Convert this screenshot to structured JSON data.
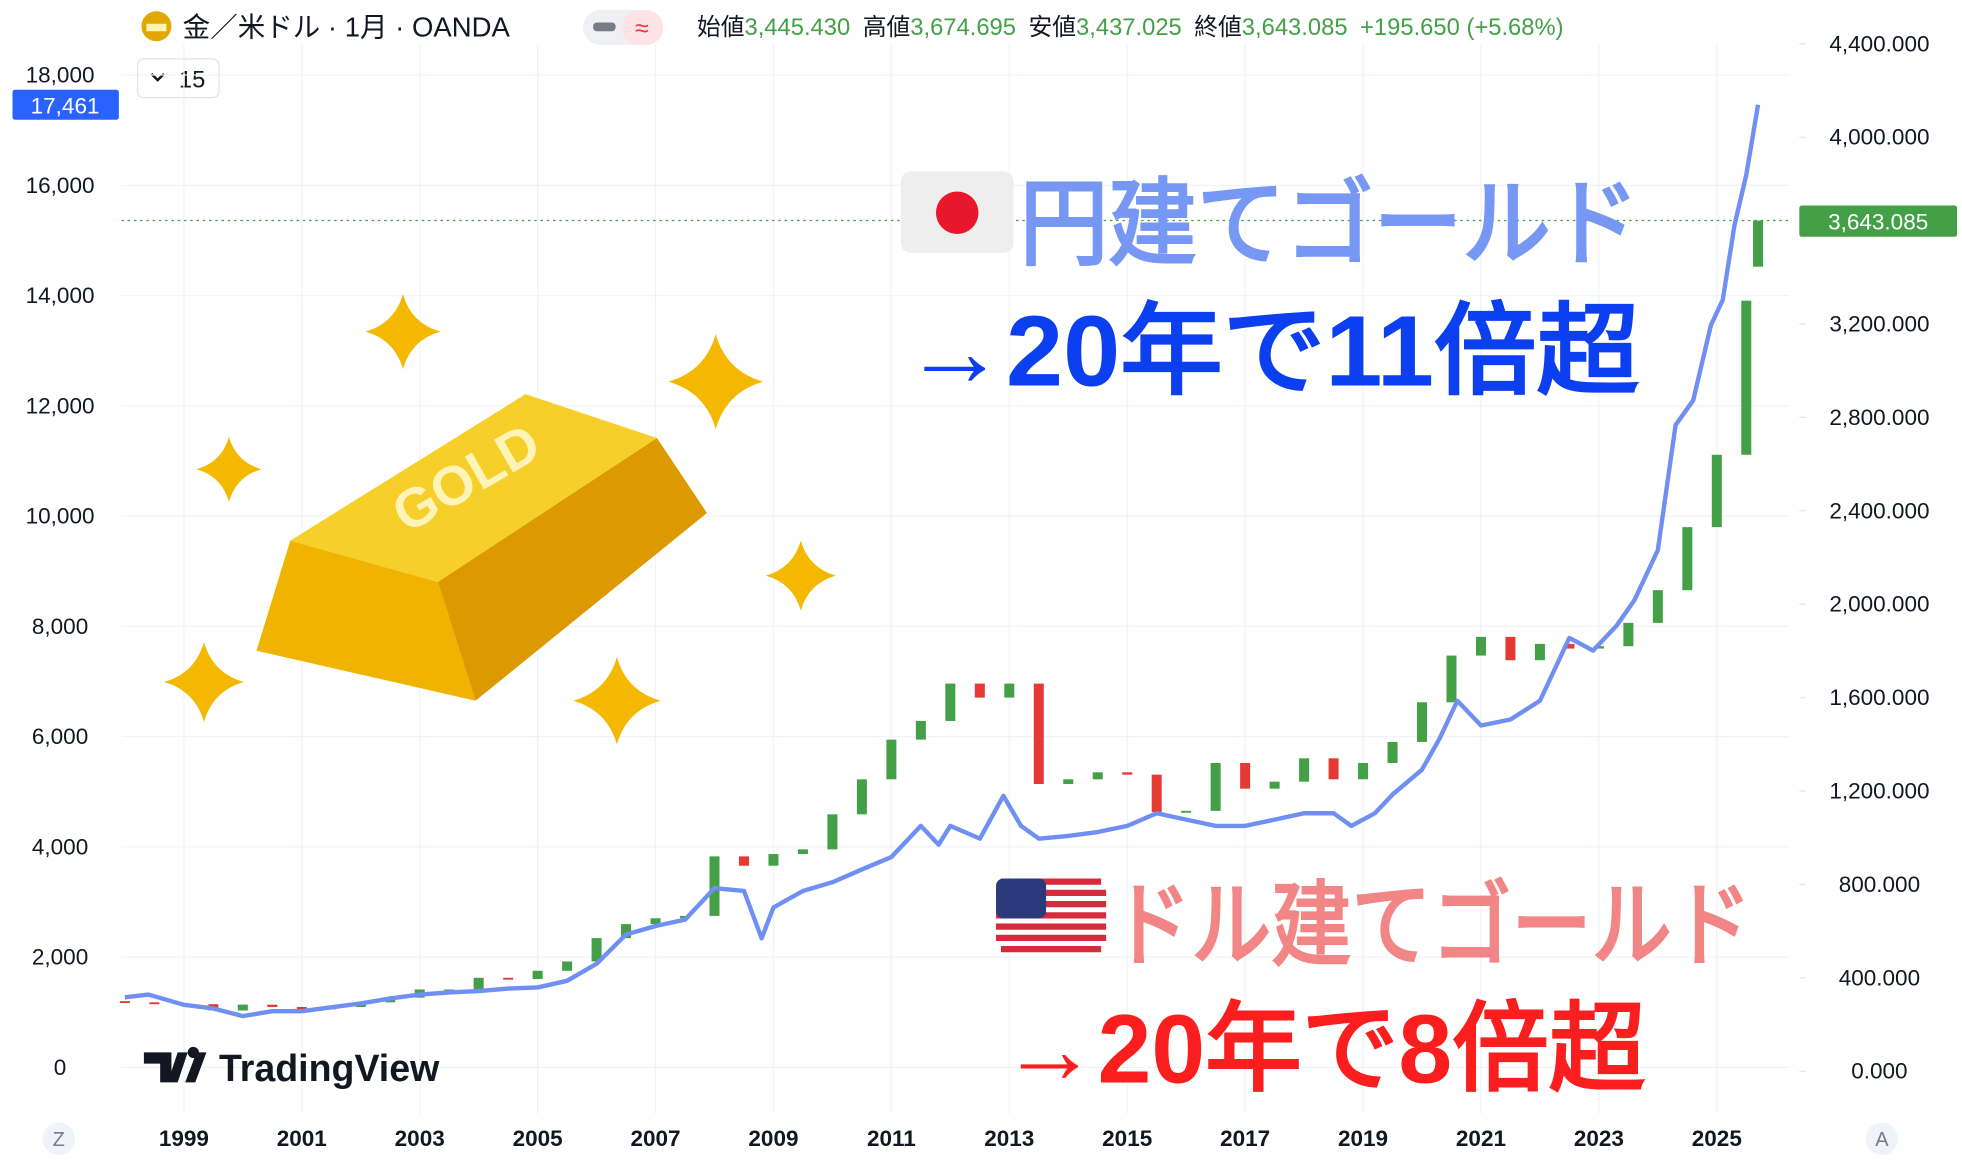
{
  "header": {
    "symbol": "金／米ドル · 1月 · OANDA",
    "ohlc": [
      {
        "label": "始値",
        "value": "3,445.430"
      },
      {
        "label": "高値",
        "value": "3,674.695"
      },
      {
        "label": "安値",
        "value": "3,437.025"
      },
      {
        "label": "終値",
        "value": "3,643.085"
      }
    ],
    "change": "+195.650 (+5.68%)",
    "interval_button": "15",
    "toggle_icon": "≈"
  },
  "illustration_text": "GOLD",
  "logo_text": "TradingView",
  "corner_buttons": [
    "Z",
    "A"
  ],
  "chart_data": {
    "type": "candlestick",
    "annotations": [
      "円建てゴールド",
      "→20年で11倍超",
      "ドル建てゴールド",
      "→20年で8倍超"
    ],
    "xlim": [
      1997.94,
      2026.23
    ],
    "xticks": [
      1999,
      2001,
      2003,
      2005,
      2007,
      2009,
      2011,
      2013,
      2015,
      2017,
      2019,
      2021,
      2023,
      2025
    ],
    "ylim": [
      -840,
      18567
    ],
    "yticks": [
      0,
      {
        "value": 2000,
        "label": "2,000"
      },
      {
        "value": 4000,
        "label": "4,000"
      },
      {
        "value": 6000,
        "label": "6,000"
      },
      {
        "value": 8000,
        "label": "8,000"
      },
      {
        "value": 10000,
        "label": "10,000"
      },
      {
        "value": 12000,
        "label": "12,000"
      },
      {
        "value": 14000,
        "label": "14,000"
      },
      {
        "value": 16000,
        "label": "16,000"
      },
      {
        "value": 18000,
        "label": "18,000"
      }
    ],
    "y2lim": [
      -182,
      4400
    ],
    "y2ticks": [
      {
        "value": 0,
        "label": "0.000"
      },
      {
        "value": 400,
        "label": "400.000"
      },
      {
        "value": 800,
        "label": "800.000"
      },
      {
        "value": 1200,
        "label": "1,200.000"
      },
      {
        "value": 1600,
        "label": "1,600.000"
      },
      {
        "value": 2000,
        "label": "2,000.000"
      },
      {
        "value": 2400,
        "label": "2,400.000"
      },
      {
        "value": 2800,
        "label": "2,800.000"
      },
      {
        "value": 3200,
        "label": "3,200.000"
      },
      {
        "value": 4000,
        "label": "4,000.000"
      },
      {
        "value": 4400,
        "label": "4,400.000"
      }
    ],
    "grid": true,
    "series": [
      {
        "type": "line",
        "color": "#6f8ff3",
        "last_value_label": "17,461",
        "x": [
          1998,
          1998.4,
          1999,
          1999.5,
          2000,
          2000.5,
          2001,
          2001.5,
          2002,
          2002.5,
          2003,
          2003.5,
          2004,
          2004.5,
          2005,
          2005.5,
          2006,
          2006.5,
          2007,
          2007.5,
          2008,
          2008.5,
          2008.8,
          2009,
          2009.5,
          2010,
          2010.5,
          2011,
          2011.5,
          2011.8,
          2012,
          2012.5,
          2012.9,
          2013.2,
          2013.5,
          2014,
          2014.5,
          2015,
          2015.5,
          2016,
          2016.5,
          2017,
          2017.5,
          2018,
          2018.5,
          2018.8,
          2019.2,
          2019.5,
          2020,
          2020.3,
          2020.6,
          2021,
          2021.5,
          2022,
          2022.5,
          2022.9,
          2023.3,
          2023.6,
          2024,
          2024.3,
          2024.6,
          2024.9,
          2025.1,
          2025.3,
          2025.5,
          2025.7
        ],
        "values": [
          1270,
          1320,
          1135,
          1070,
          930,
          1020,
          1020,
          1090,
          1160,
          1250,
          1320,
          1360,
          1385,
          1430,
          1450,
          1570,
          1880,
          2410,
          2565,
          2680,
          3250,
          3200,
          2340,
          2900,
          3200,
          3360,
          3590,
          3815,
          4380,
          4040,
          4380,
          4150,
          4925,
          4380,
          4150,
          4200,
          4270,
          4380,
          4610,
          4495,
          4380,
          4380,
          4495,
          4610,
          4610,
          4380,
          4610,
          4950,
          5400,
          5970,
          6650,
          6200,
          6310,
          6650,
          7790,
          7560,
          8010,
          8470,
          9380,
          11650,
          12100,
          13460,
          13920,
          15280,
          16190,
          17461
        ]
      },
      {
        "type": "candlestick",
        "axis": "y2",
        "up_color": "#43a047",
        "down_color": "#e53935",
        "last_value_label": "3,643.085",
        "x": [
          1998,
          1998.5,
          1999,
          1999.5,
          2000,
          2000.5,
          2001,
          2001.5,
          2002,
          2002.5,
          2003,
          2003.5,
          2004,
          2004.5,
          2005,
          2005.5,
          2006,
          2006.5,
          2007,
          2007.5,
          2008,
          2008.5,
          2009,
          2009.5,
          2010,
          2010.5,
          2011,
          2011.5,
          2012,
          2012.5,
          2013,
          2013.5,
          2014,
          2014.5,
          2015,
          2015.5,
          2016,
          2016.5,
          2017,
          2017.5,
          2018,
          2018.5,
          2019,
          2019.5,
          2020,
          2020.5,
          2021,
          2021.5,
          2022,
          2022.5,
          2023,
          2023.5,
          2024,
          2024.5,
          2025,
          2025.5,
          2025.7
        ],
        "open": [
          300,
          295,
          290,
          287,
          260,
          285,
          275,
          265,
          275,
          295,
          315,
          350,
          350,
          400,
          395,
          430,
          470,
          570,
          630,
          655,
          665,
          920,
          880,
          930,
          950,
          1100,
          1250,
          1420,
          1500,
          1660,
          1600,
          1660,
          1230,
          1250,
          1280,
          1270,
          1110,
          1115,
          1320,
          1210,
          1240,
          1340,
          1250,
          1320,
          1410,
          1580,
          1780,
          1860,
          1760,
          1830,
          1810,
          1820,
          1920,
          2060,
          2330,
          2640,
          3445.43
        ],
        "values": [
          295,
          290,
          287,
          260,
          285,
          275,
          265,
          275,
          295,
          315,
          350,
          350,
          400,
          395,
          430,
          470,
          570,
          630,
          655,
          665,
          920,
          880,
          930,
          950,
          1100,
          1250,
          1420,
          1500,
          1660,
          1600,
          1660,
          1230,
          1250,
          1280,
          1270,
          1110,
          1115,
          1320,
          1210,
          1240,
          1340,
          1250,
          1320,
          1410,
          1580,
          1780,
          1860,
          1760,
          1830,
          1810,
          1820,
          1920,
          2060,
          2330,
          2640,
          3300,
          3643.085
        ]
      }
    ]
  }
}
